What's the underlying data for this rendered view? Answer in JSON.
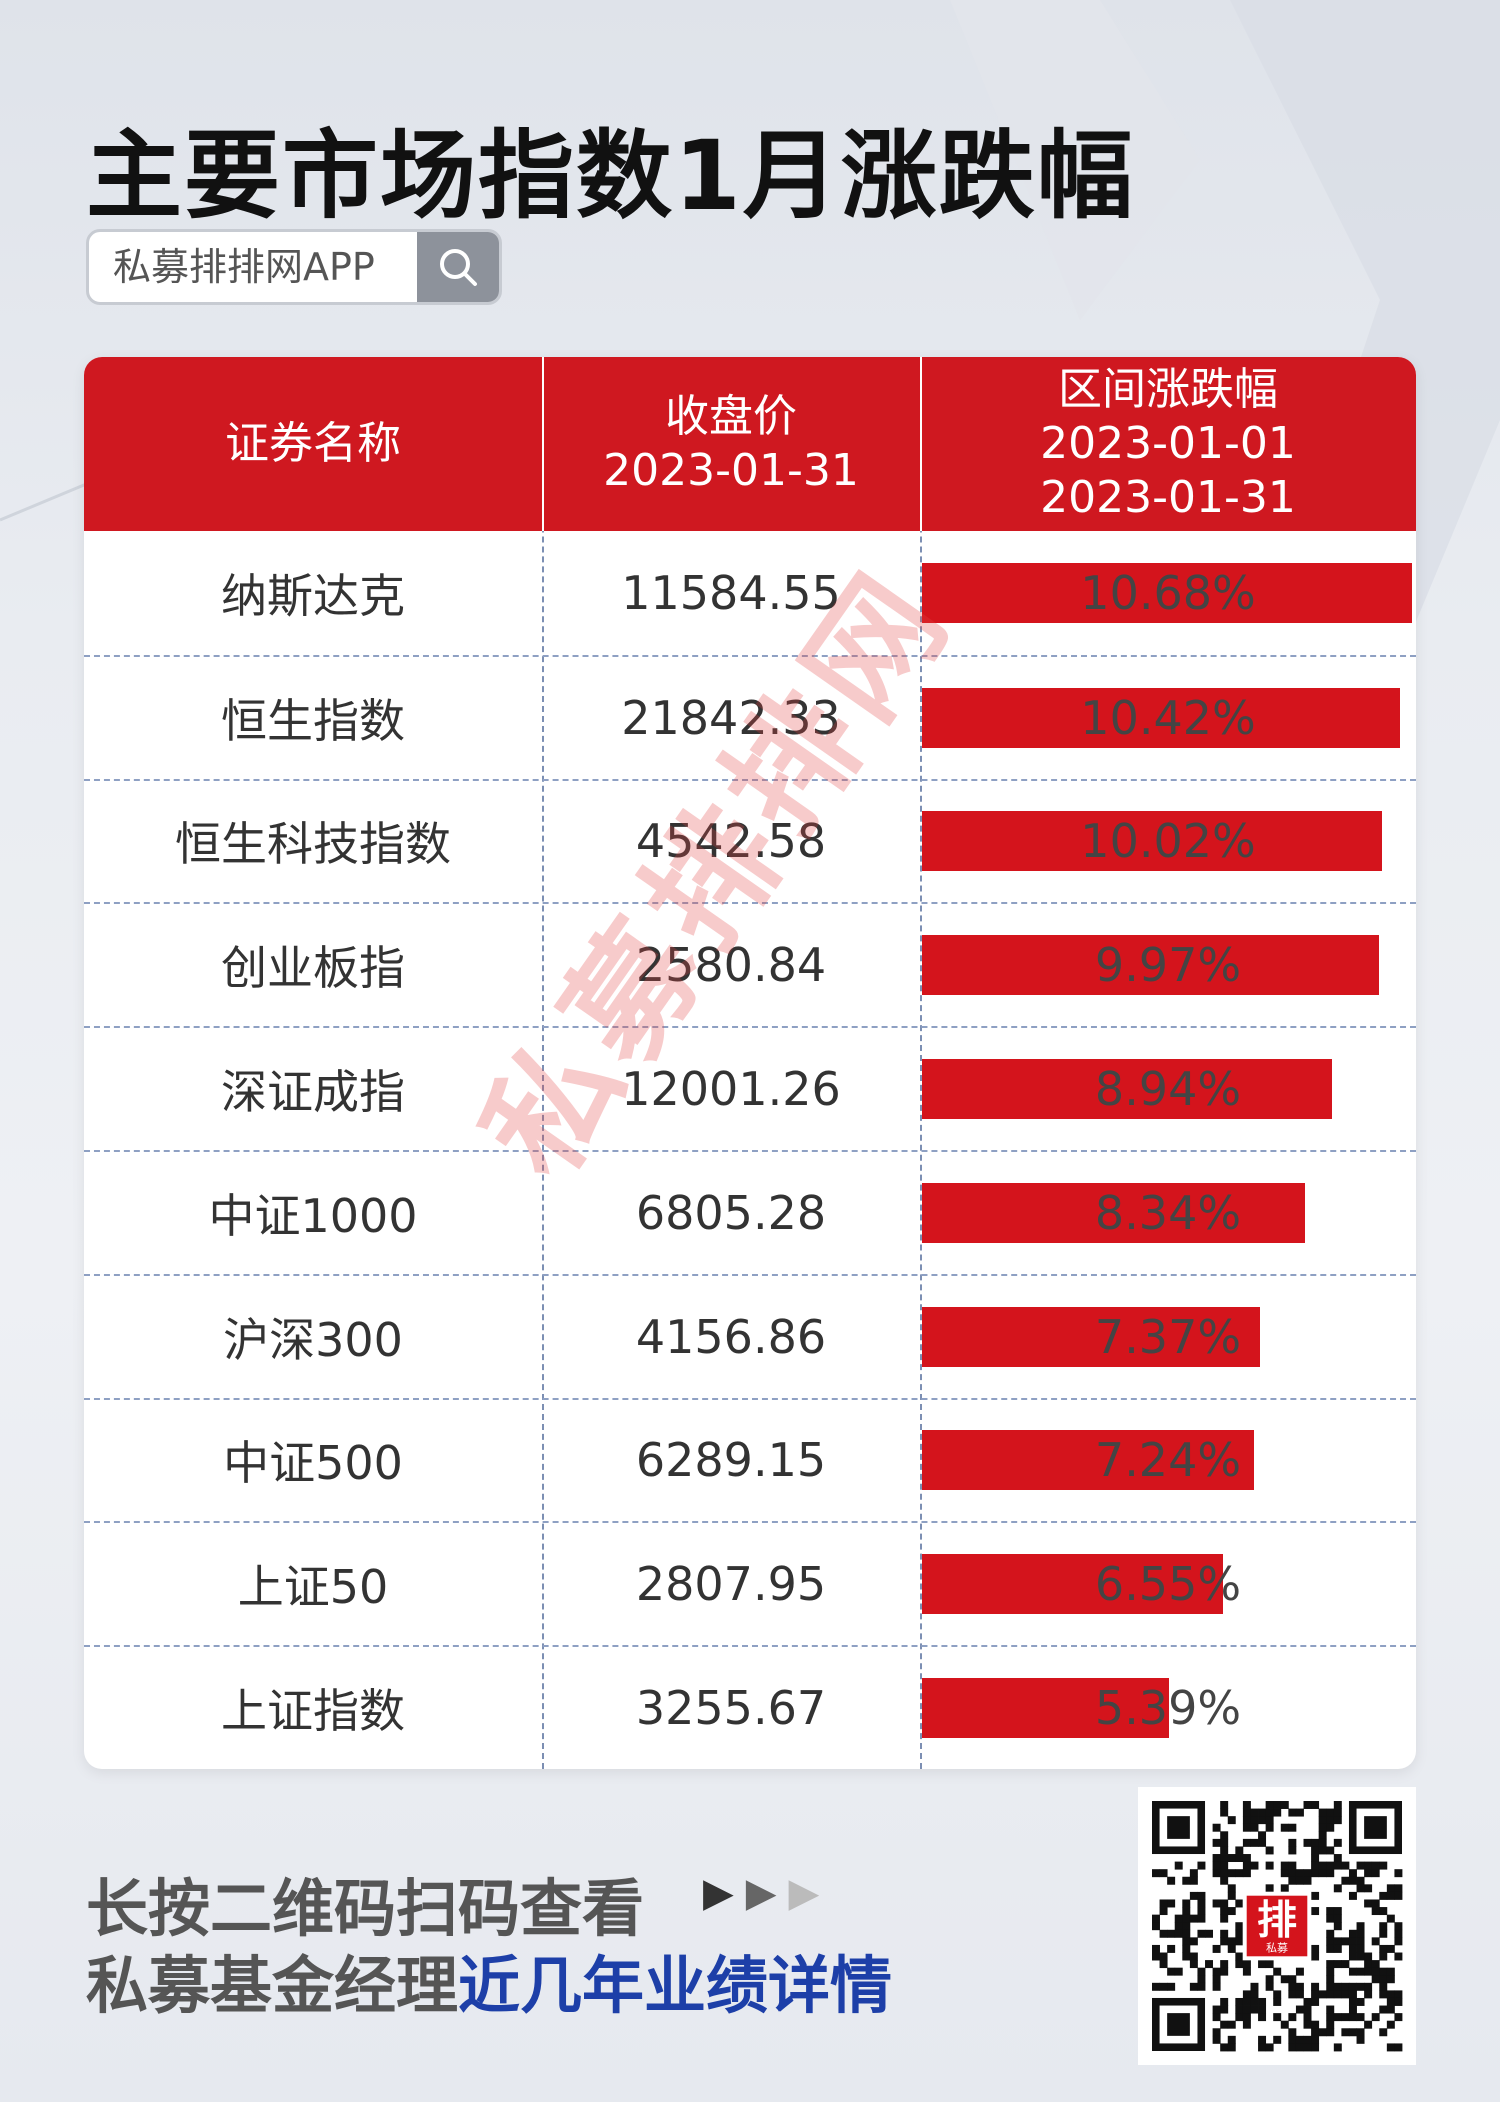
{
  "title": "主要市场指数1月涨跌幅",
  "search": {
    "text": "私募排排网APP",
    "icon": "search-icon"
  },
  "columns": {
    "name": "证券名称",
    "close_line1": "收盘价",
    "close_line2": "2023-01-31",
    "range_line1": "区间涨跌幅",
    "range_line2": "2023-01-01",
    "range_line3": "2023-01-31"
  },
  "chart_data": {
    "type": "table",
    "columns": [
      "证券名称",
      "收盘价 2023-01-31",
      "区间涨跌幅 2023-01-01 2023-01-31"
    ],
    "rows": [
      {
        "name": "纳斯达克",
        "close": "11584.55",
        "change": 10.68,
        "change_label": "10.68%"
      },
      {
        "name": "恒生指数",
        "close": "21842.33",
        "change": 10.42,
        "change_label": "10.42%"
      },
      {
        "name": "恒生科技指数",
        "close": "4542.58",
        "change": 10.02,
        "change_label": "10.02%"
      },
      {
        "name": "创业板指",
        "close": "2580.84",
        "change": 9.97,
        "change_label": "9.97%"
      },
      {
        "name": "深证成指",
        "close": "12001.26",
        "change": 8.94,
        "change_label": "8.94%"
      },
      {
        "name": "中证1000",
        "close": "6805.28",
        "change": 8.34,
        "change_label": "8.34%"
      },
      {
        "name": "沪深300",
        "close": "4156.86",
        "change": 7.37,
        "change_label": "7.37%"
      },
      {
        "name": "中证500",
        "close": "6289.15",
        "change": 7.24,
        "change_label": "7.24%"
      },
      {
        "name": "上证50",
        "close": "2807.95",
        "change": 6.55,
        "change_label": "6.55%"
      },
      {
        "name": "上证指数",
        "close": "3255.67",
        "change": 5.39,
        "change_label": "5.39%"
      }
    ],
    "bar_color": "#d4141c",
    "header_color": "#cf1820"
  },
  "watermark": "私募排排网",
  "footer": {
    "line1": "长按二维码扫码查看",
    "line2_plain": "私募基金经理",
    "line2_highlight": "近几年业绩详情",
    "highlight_color": "#1d3fa8",
    "arrows": "▶▶▶"
  },
  "qr": {
    "logo_text": "排",
    "logo_sub": "私募"
  }
}
